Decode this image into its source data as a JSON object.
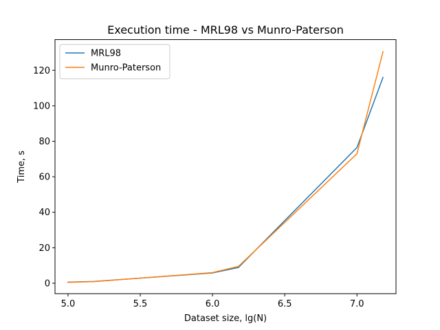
{
  "chart_data": {
    "type": "line",
    "title": "Execution time - MRL98 vs Munro-Paterson",
    "xlabel": "Dataset size, lg(N)",
    "ylabel": "Time, s",
    "xlim": [
      4.91,
      7.27
    ],
    "ylim": [
      -5.9,
      137.3
    ],
    "xticks": [
      5.0,
      5.5,
      6.0,
      6.5,
      7.0
    ],
    "xtick_labels": [
      "5.0",
      "5.5",
      "6.0",
      "6.5",
      "7.0"
    ],
    "yticks": [
      0,
      20,
      40,
      60,
      80,
      100,
      120
    ],
    "ytick_labels": [
      "0",
      "20",
      "40",
      "60",
      "80",
      "100",
      "120"
    ],
    "grid": false,
    "legend_position": "top-left",
    "x": [
      5.0,
      5.18,
      6.0,
      6.18,
      7.0,
      7.18
    ],
    "series": [
      {
        "name": "MRL98",
        "color": "#1f77b4",
        "values": [
          0.6,
          1.0,
          5.8,
          8.9,
          76.5,
          116.0
        ]
      },
      {
        "name": "Munro-Paterson",
        "color": "#ff7f0e",
        "values": [
          0.5,
          0.9,
          6.0,
          9.5,
          73.0,
          130.5
        ]
      }
    ]
  }
}
